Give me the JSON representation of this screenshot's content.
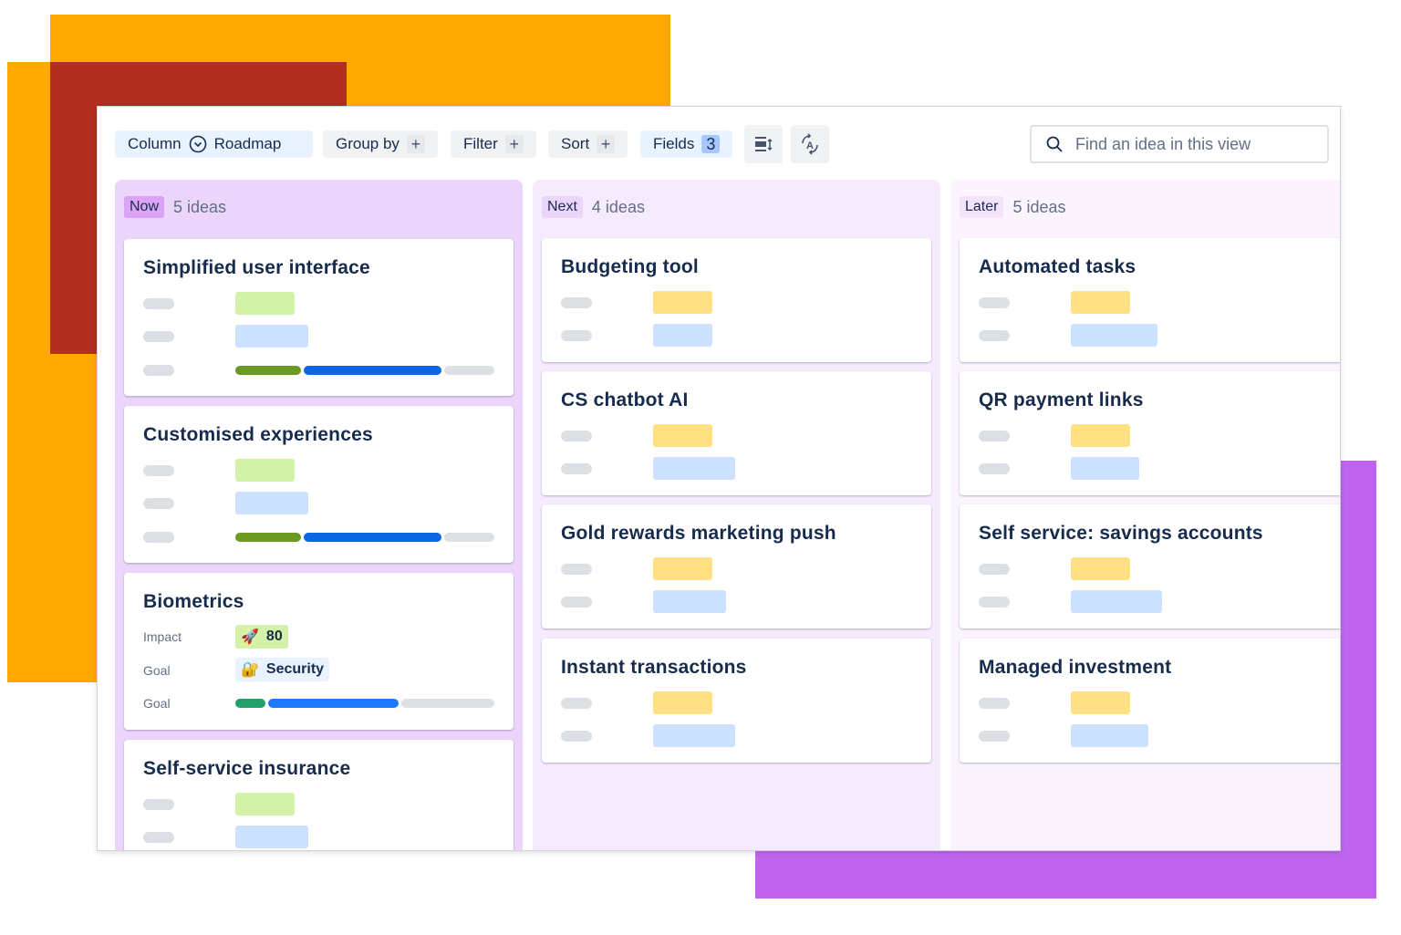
{
  "colors": {
    "orange": "#ffa800",
    "red": "#b22d1e",
    "purple": "#c064f0",
    "now_bg": "#ecd5fb",
    "next_bg": "#f6ebfd",
    "later_bg": "#fbf4fe",
    "green_pill": "#d3f1a7",
    "blue_pill": "#cce0ff",
    "yellow_pill": "#ffe083"
  },
  "toolbar": {
    "column_label": "Column",
    "roadmap_label": "Roadmap",
    "group_by": "Group by",
    "filter": "Filter",
    "sort": "Sort",
    "fields": "Fields",
    "fields_count": "3",
    "plus": "+",
    "search_placeholder": "Find an idea in this view"
  },
  "columns": [
    {
      "label": "Now",
      "count": "5 ideas",
      "cards": [
        {
          "title": "Simplified user interface"
        },
        {
          "title": "Customised experiences"
        },
        {
          "title": "Biometrics",
          "impact_label": "Impact",
          "impact_value": "80",
          "goal_label": "Goal",
          "goal_value": "Security",
          "progress_label": "Goal"
        },
        {
          "title": "Self-service insurance"
        }
      ]
    },
    {
      "label": "Next",
      "count": "4 ideas",
      "cards": [
        {
          "title": "Budgeting tool"
        },
        {
          "title": "CS chatbot AI"
        },
        {
          "title": "Gold rewards marketing push"
        },
        {
          "title": "Instant transactions"
        }
      ]
    },
    {
      "label": "Later",
      "count": "5 ideas",
      "cards": [
        {
          "title": "Automated tasks"
        },
        {
          "title": "QR payment links"
        },
        {
          "title": "Self service: savings accounts"
        },
        {
          "title": "Managed investment"
        }
      ]
    }
  ]
}
